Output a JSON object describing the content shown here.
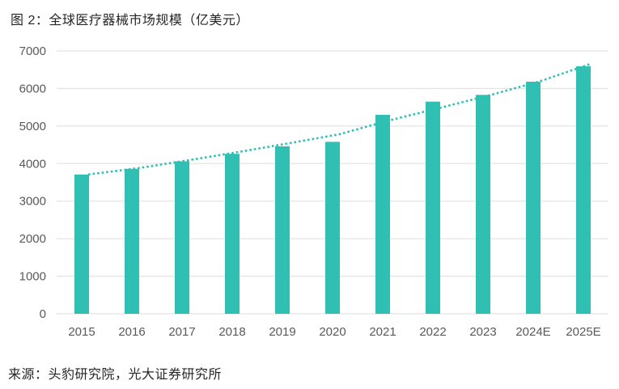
{
  "title": "图 2：全球医疗器械市场规模（亿美元）",
  "source": "来源：头豹研究院，光大证券研究所",
  "colors": {
    "accent_teal": "#2FBFB3",
    "gridline": "#E4E4E4",
    "axis_text": "#595959",
    "title_text": "#262626",
    "background": "#FFFFFF"
  },
  "chart_data": {
    "type": "bar",
    "title": "图 2：全球医疗器械市场规模（亿美元）",
    "xlabel": "",
    "ylabel": "",
    "categories": [
      "2015",
      "2016",
      "2017",
      "2018",
      "2019",
      "2020",
      "2021",
      "2022",
      "2023",
      "2024E",
      "2025E"
    ],
    "values": [
      3710,
      3860,
      4060,
      4260,
      4460,
      4580,
      5300,
      5650,
      5830,
      6180,
      6590
    ],
    "series": [
      {
        "name": "市场规模(亿美元)",
        "type": "bar",
        "values": [
          3710,
          3860,
          4060,
          4260,
          4460,
          4580,
          5300,
          5650,
          5830,
          6180,
          6590
        ]
      },
      {
        "name": "趋势线",
        "type": "dotted-line",
        "values": [
          3710,
          3880,
          4090,
          4310,
          4540,
          4780,
          5150,
          5480,
          5820,
          6190,
          6650
        ]
      }
    ],
    "ylim": [
      0,
      7000
    ],
    "ytick_step": 1000,
    "yticks": [
      0,
      1000,
      2000,
      3000,
      4000,
      5000,
      6000,
      7000
    ],
    "bar_color": "#2FBFB3",
    "trend_color": "#2FBFB3",
    "grid": true,
    "legend_position": "none"
  }
}
